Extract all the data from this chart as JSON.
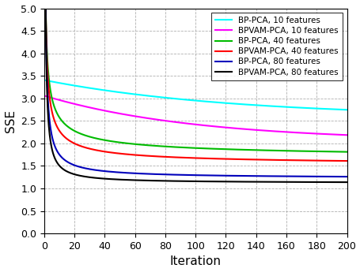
{
  "title": "",
  "xlabel": "Iteration",
  "ylabel": "SSE",
  "xlim": [
    1,
    200
  ],
  "ylim": [
    0,
    5
  ],
  "xticks": [
    0,
    20,
    40,
    60,
    80,
    100,
    120,
    140,
    160,
    180,
    200
  ],
  "yticks": [
    0,
    0.5,
    1,
    1.5,
    2,
    2.5,
    3,
    3.5,
    4,
    4.5,
    5
  ],
  "series": [
    {
      "label": "BP-PCA, 10 features",
      "color": "#00FFFF",
      "start": 3.4,
      "end": 2.58,
      "decay": 0.008
    },
    {
      "label": "BPVAM-PCA, 10 features",
      "color": "#FF00FF",
      "start": 3.05,
      "end": 2.05,
      "decay": 0.01
    },
    {
      "label": "BP-PCA, 40 features",
      "color": "#00BB00",
      "start": 5.0,
      "end": 1.63,
      "decay": 0.55
    },
    {
      "label": "BPVAM-PCA, 40 features",
      "color": "#FF0000",
      "start": 5.0,
      "end": 1.5,
      "decay": 0.65
    },
    {
      "label": "BP-PCA, 80 features",
      "color": "#0000BB",
      "start": 5.0,
      "end": 1.22,
      "decay": 0.85
    },
    {
      "label": "BPVAM-PCA, 80 features",
      "color": "#000000",
      "start": 5.0,
      "end": 1.12,
      "decay": 1.0
    }
  ],
  "background_color": "#ffffff",
  "grid_color": "#b0b0b0",
  "grid_style": "--",
  "linewidth": 1.5
}
